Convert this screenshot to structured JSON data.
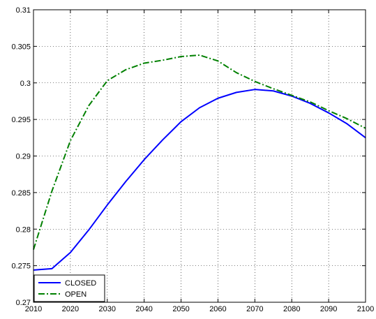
{
  "chart_data": {
    "type": "line",
    "title": "",
    "xlabel": "",
    "ylabel": "",
    "xlim": [
      2010,
      2100
    ],
    "ylim": [
      0.27,
      0.31
    ],
    "xticks": [
      2010,
      2020,
      2030,
      2040,
      2050,
      2060,
      2070,
      2080,
      2090,
      2100
    ],
    "xtick_labels": [
      "2010",
      "2020",
      "2030",
      "2040",
      "2050",
      "2060",
      "2070",
      "2080",
      "2090",
      "2100"
    ],
    "yticks": [
      0.27,
      0.275,
      0.28,
      0.285,
      0.29,
      0.295,
      0.3,
      0.305,
      0.31
    ],
    "ytick_labels": [
      "0.27",
      "0.275",
      "0.28",
      "0.285",
      "0.29",
      "0.295",
      "0.3",
      "0.305",
      "0.31"
    ],
    "grid": true,
    "legend_position": "bottom-left",
    "series": [
      {
        "name": "CLOSED",
        "color": "#0000ff",
        "style": "solid",
        "x": [
          2010,
          2015,
          2020,
          2025,
          2030,
          2035,
          2040,
          2045,
          2050,
          2055,
          2060,
          2065,
          2070,
          2075,
          2080,
          2085,
          2090,
          2095,
          2100
        ],
        "y": [
          0.2744,
          0.2746,
          0.2768,
          0.2799,
          0.2833,
          0.2865,
          0.2895,
          0.2922,
          0.2947,
          0.2966,
          0.2979,
          0.2987,
          0.2991,
          0.2989,
          0.2982,
          0.2972,
          0.2959,
          0.2944,
          0.2925
        ]
      },
      {
        "name": "OPEN",
        "color": "#008000",
        "style": "dashdot",
        "x": [
          2010,
          2015,
          2020,
          2025,
          2030,
          2035,
          2040,
          2045,
          2050,
          2055,
          2060,
          2065,
          2070,
          2075,
          2080,
          2085,
          2090,
          2095,
          2100
        ],
        "y": [
          0.2772,
          0.2852,
          0.2921,
          0.2969,
          0.3003,
          0.3018,
          0.3027,
          0.3031,
          0.3036,
          0.3038,
          0.303,
          0.3014,
          0.3002,
          0.2992,
          0.2983,
          0.2974,
          0.2962,
          0.2951,
          0.2938
        ]
      }
    ]
  }
}
